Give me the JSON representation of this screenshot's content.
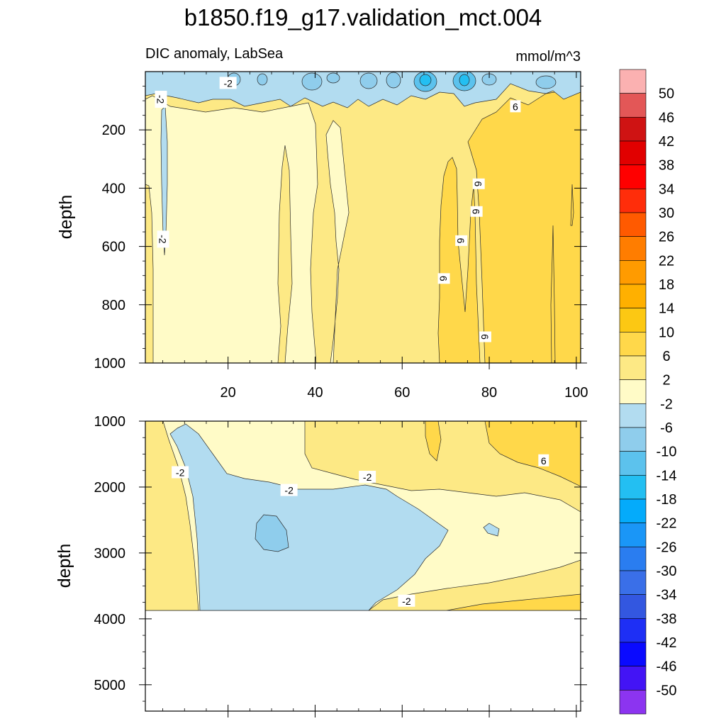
{
  "chart_data": {
    "type": "contour",
    "title": "b1850.f19_g17.validation_mct.004",
    "colors": {
      "background": "#ffffff",
      "axis": "#000000",
      "contour_line": "#2b2b2b",
      "missing": "#ffffff"
    },
    "panels": [
      {
        "id": "upper",
        "subtitle_left": "DIC anomaly, LabSea",
        "subtitle_right": "mmol/m^3",
        "ylabel": "depth",
        "xlim": [
          1,
          101
        ],
        "ylim": [
          0,
          1000
        ],
        "y_reversed": true,
        "x_ticks": [
          20,
          40,
          60,
          80,
          100
        ],
        "y_ticks": [
          200,
          400,
          600,
          800,
          1000
        ],
        "contour_labels": [
          {
            "text": "-2",
            "x": 4.5,
            "y": 95
          },
          {
            "text": "-2",
            "x": 20,
            "y": 40
          },
          {
            "text": "-2",
            "x": 5,
            "y": 575
          },
          {
            "text": "6",
            "x": 86,
            "y": 120
          },
          {
            "text": "6",
            "x": 77.5,
            "y": 385
          },
          {
            "text": "6",
            "x": 77,
            "y": 480
          },
          {
            "text": "6",
            "x": 73.5,
            "y": 580
          },
          {
            "text": "6",
            "x": 69.5,
            "y": 710
          },
          {
            "text": "6",
            "x": 79,
            "y": 910
          }
        ]
      },
      {
        "id": "lower",
        "subtitle_left": "",
        "subtitle_right": "",
        "ylabel": "depth",
        "xlim": [
          1,
          101
        ],
        "ylim": [
          1000,
          5400
        ],
        "y_reversed": true,
        "x_ticks": [
          20,
          40,
          60,
          80,
          100
        ],
        "y_ticks": [
          1000,
          2000,
          3000,
          4000,
          5000
        ],
        "contour_labels": [
          {
            "text": "-2",
            "x": 9,
            "y": 1780
          },
          {
            "text": "-2",
            "x": 34,
            "y": 2050
          },
          {
            "text": "-2",
            "x": 52,
            "y": 1850
          },
          {
            "text": "-2",
            "x": 61,
            "y": 3730
          },
          {
            "text": "6",
            "x": 92.5,
            "y": 1600
          }
        ]
      }
    ],
    "colorbar": {
      "labels": [
        "50",
        "46",
        "42",
        "38",
        "34",
        "30",
        "26",
        "22",
        "18",
        "14",
        "10",
        "6",
        "2",
        "-2",
        "-6",
        "-10",
        "-14",
        "-18",
        "-22",
        "-26",
        "-30",
        "-34",
        "-38",
        "-42",
        "-46",
        "-50"
      ],
      "colors": [
        "#fbb1b1",
        "#e35757",
        "#cf1313",
        "#e10000",
        "#ff0000",
        "#ff2d0a",
        "#ff5a00",
        "#ff7d00",
        "#ff9b00",
        "#ffb000",
        "#fcc813",
        "#ffd84a",
        "#fde985",
        "#fffbc7",
        "#b2dcf0",
        "#8fcdec",
        "#5cc2ed",
        "#23bff2",
        "#04abfb",
        "#1a96f7",
        "#2a7df0",
        "#3a6fe8",
        "#3357e0",
        "#1e2ff5",
        "#0a0aff",
        "#4314f5",
        "#8c34f0"
      ]
    }
  }
}
